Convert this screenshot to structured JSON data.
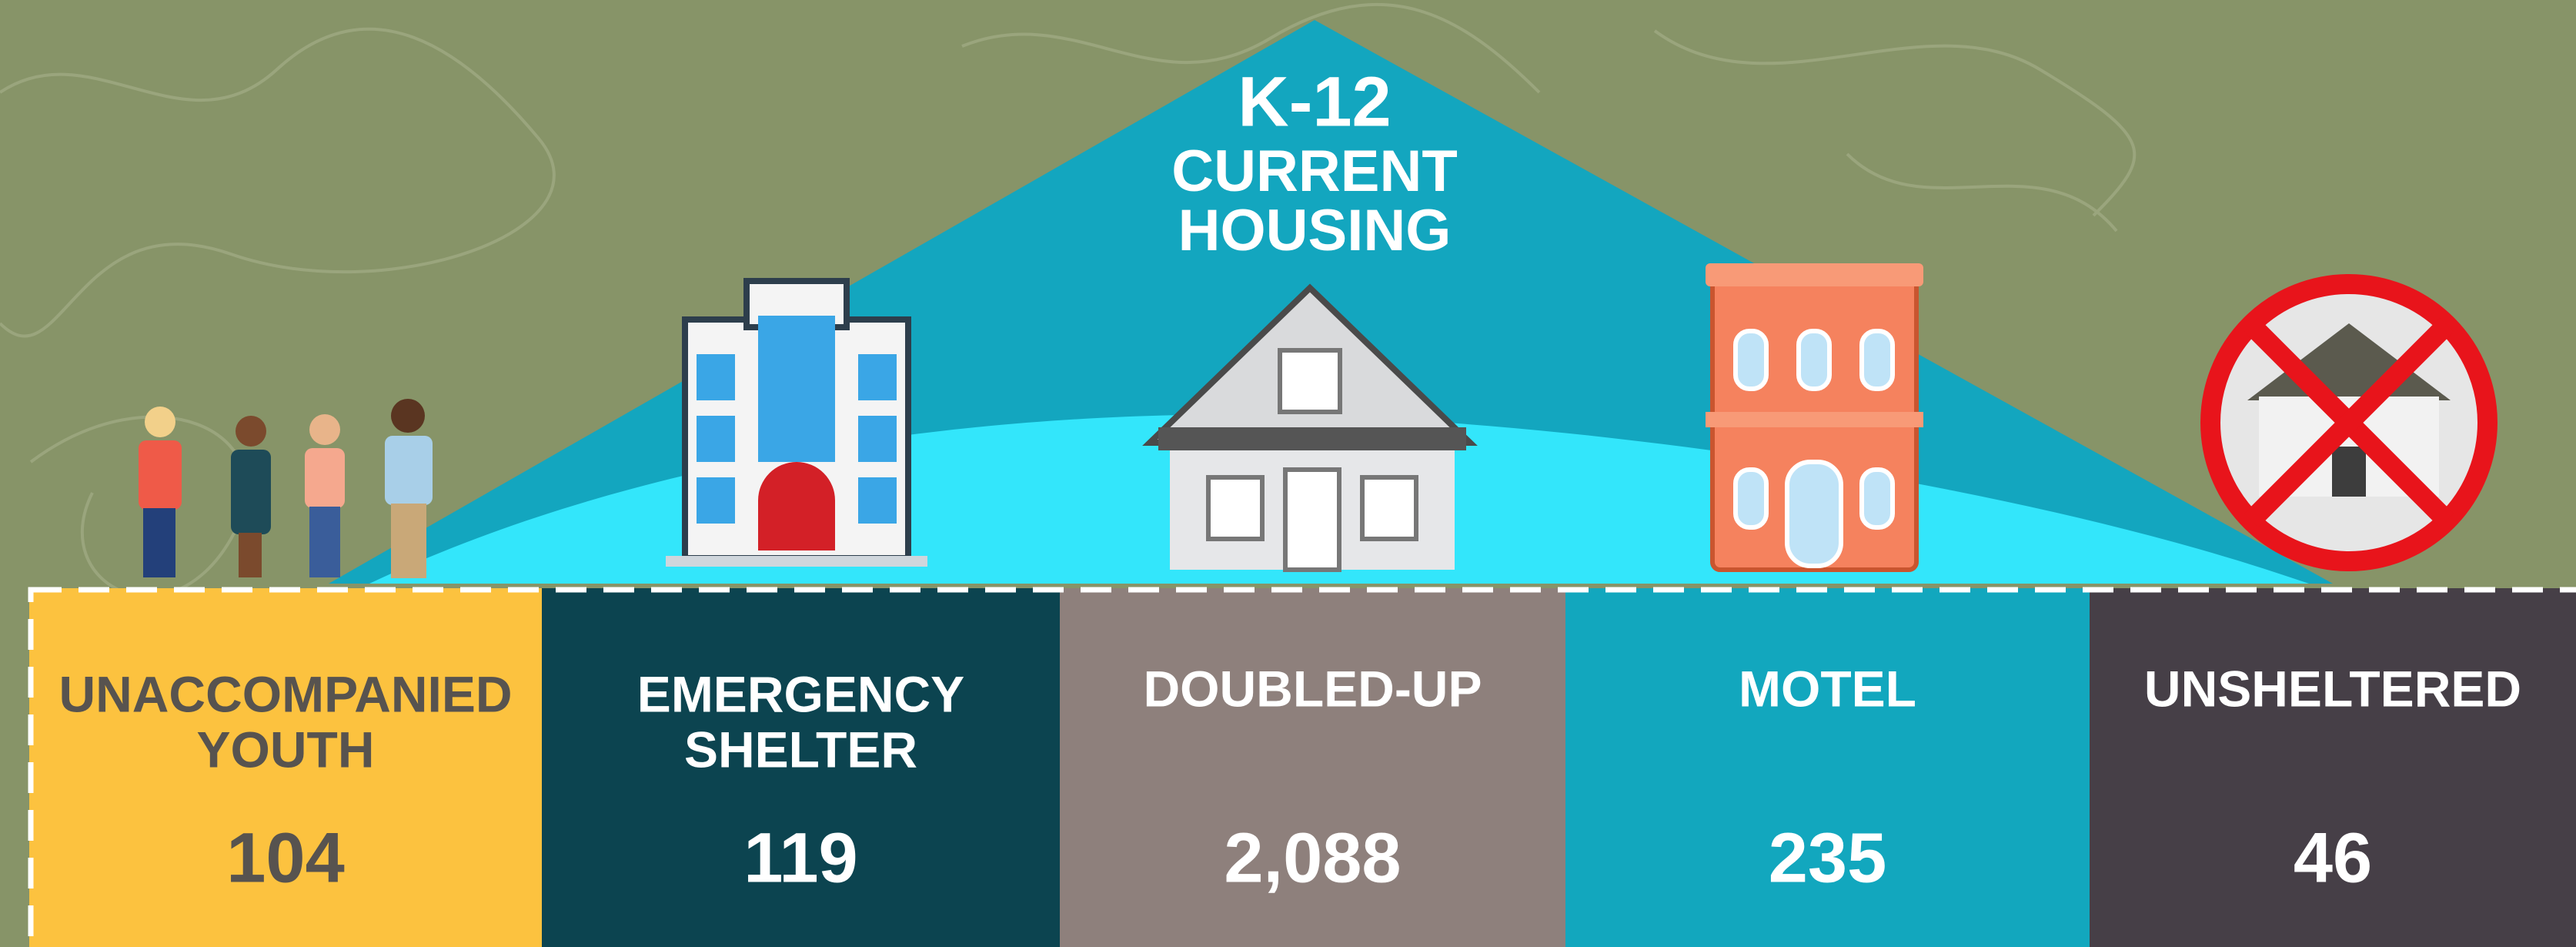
{
  "header": {
    "title_lines": [
      "K-12",
      "CURRENT",
      "HOUSING"
    ]
  },
  "cards": [
    {
      "label_lines": [
        "UNACCOMPANIED",
        "YOUTH"
      ],
      "value": "104"
    },
    {
      "label_lines": [
        "EMERGENCY",
        "SHELTER"
      ],
      "value": "119"
    },
    {
      "label_lines": [
        "DOUBLED-UP"
      ],
      "value": "2,088"
    },
    {
      "label_lines": [
        "MOTEL"
      ],
      "value": "235"
    },
    {
      "label_lines": [
        "UNSHELTERED"
      ],
      "value": "46"
    }
  ]
}
